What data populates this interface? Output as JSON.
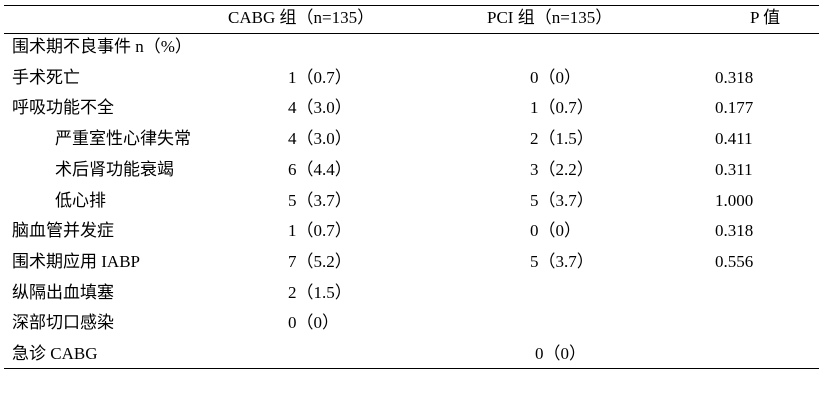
{
  "table": {
    "header": {
      "cabg": "CABG 组（n=135）",
      "pci": "PCI 组（n=135）",
      "p": "P 值"
    },
    "rows": [
      {
        "label": "围术期不良事件 n（%）"
      },
      {
        "label": "手术死亡",
        "cabg": "1（0.7）",
        "pci": "0（0）",
        "p": "0.318"
      },
      {
        "label": "呼吸功能不全",
        "cabg": "4（3.0）",
        "pci": "1（0.7）",
        "p": "0.177",
        "subrows": [
          {
            "label": "严重室性心律失常",
            "cabg": "4（3.0）",
            "pci": "2（1.5）",
            "p": "0.411"
          },
          {
            "label": "术后肾功能衰竭",
            "cabg": "6（4.4）",
            "pci": "3（2.2）",
            "p": "0.311"
          },
          {
            "label": "低心排",
            "cabg": "5（3.7）",
            "pci": "5（3.7）",
            "p": "1.000"
          }
        ]
      },
      {
        "label": "脑血管并发症",
        "cabg": "1（0.7）",
        "pci": "0（0）",
        "p": "0.318"
      },
      {
        "label": "围术期应用 IABP",
        "cabg": "7（5.2）",
        "pci": "5（3.7）",
        "p": "0.556"
      },
      {
        "label": "纵隔出血填塞",
        "cabg": "2（1.5）"
      },
      {
        "label": "深部切口感染",
        "cabg": "0（0）"
      },
      {
        "label": "急诊 CABG",
        "pci": "0（0）"
      }
    ]
  }
}
